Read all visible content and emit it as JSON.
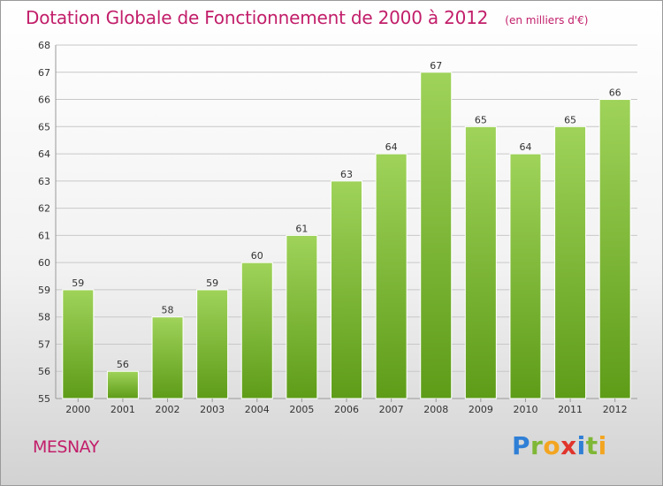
{
  "title": "Dotation Globale de Fonctionnement de 2000 à 2012",
  "subtitle": "(en milliers d'€)",
  "commune": "MESNAY",
  "brand": {
    "letters": [
      {
        "ch": "P",
        "color": "#2f7fd6"
      },
      {
        "ch": "r",
        "color": "#7fb736"
      },
      {
        "ch": "o",
        "color": "#f3a521"
      },
      {
        "ch": "x",
        "color": "#e0342c"
      },
      {
        "ch": "i",
        "color": "#2f7fd6"
      },
      {
        "ch": "t",
        "color": "#7fb736"
      },
      {
        "ch": "i",
        "color": "#f3a521"
      }
    ]
  },
  "colors": {
    "title": "#c21e6a",
    "bar_top": "#9fd35a",
    "bar_bottom": "#5e9c18",
    "grid": "#c8c8c8",
    "axis_text": "#333333"
  },
  "chart_data": {
    "type": "bar",
    "categories": [
      "2000",
      "2001",
      "2002",
      "2003",
      "2004",
      "2005",
      "2006",
      "2007",
      "2008",
      "2009",
      "2010",
      "2011",
      "2012"
    ],
    "values": [
      59,
      56,
      58,
      59,
      60,
      61,
      63,
      64,
      67,
      65,
      64,
      65,
      66
    ],
    "data_labels": [
      "59",
      "56",
      "58",
      "59",
      "60",
      "61",
      "63",
      "64",
      "67",
      "65",
      "64",
      "65",
      "66"
    ],
    "ylim": [
      55,
      68
    ],
    "yticks": [
      "55",
      "56",
      "57",
      "58",
      "59",
      "60",
      "61",
      "62",
      "63",
      "64",
      "65",
      "66",
      "67",
      "68"
    ],
    "grid": true,
    "legend": "none"
  }
}
